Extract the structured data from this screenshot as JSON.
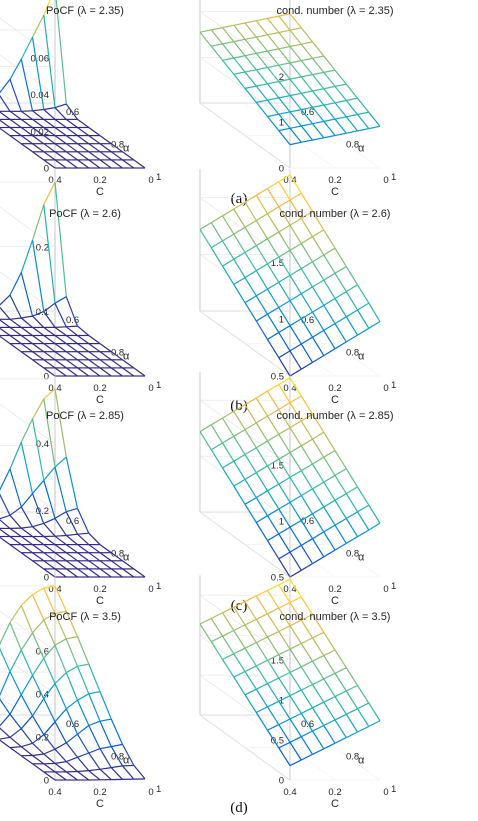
{
  "figure": {
    "captions": [
      "(a)",
      "(b)",
      "(c)",
      "(d)"
    ]
  },
  "chart_data": [
    {
      "type": "surface",
      "panel": "a",
      "title": "PoCF (λ = 2.35)",
      "xlabel": "C",
      "ylabel": "α",
      "x_ticks": [
        "0",
        "0.2",
        "0.4"
      ],
      "y_ticks": [
        "1",
        "0.8",
        "0.6"
      ],
      "z_ticks": [
        "0",
        "0.02",
        "0.04",
        "0.06"
      ],
      "xlim": [
        0,
        0.4
      ],
      "ylim": [
        0.6,
        1
      ],
      "zlim": [
        0,
        0.06
      ],
      "colormap": "parula",
      "mesh_lines": "wireframe",
      "x_values": [
        0,
        0.05,
        0.1,
        0.15,
        0.2,
        0.25,
        0.3,
        0.35,
        0.4
      ],
      "y_values": [
        0.6,
        0.65,
        0.7,
        0.75,
        0.8,
        0.85,
        0.9,
        0.95,
        1
      ],
      "z": [
        [
          0.063,
          0.048,
          0.036,
          0.024,
          0.013,
          0.005,
          0.0015,
          0.0003,
          0
        ],
        [
          0.004,
          0.002,
          0.001,
          0.0003,
          0,
          0,
          0,
          0,
          0
        ],
        [
          0,
          0,
          0,
          0,
          0,
          0,
          0,
          0,
          0
        ],
        [
          0,
          0,
          0,
          0,
          0,
          0,
          0,
          0,
          0
        ],
        [
          0,
          0,
          0,
          0,
          0,
          0,
          0,
          0,
          0
        ],
        [
          0,
          0,
          0,
          0,
          0,
          0,
          0,
          0,
          0
        ],
        [
          0,
          0,
          0,
          0,
          0,
          0,
          0,
          0,
          0
        ],
        [
          0,
          0,
          0,
          0,
          0,
          0,
          0,
          0,
          0
        ],
        [
          0,
          0,
          0,
          0,
          0,
          0,
          0,
          0,
          0
        ]
      ]
    },
    {
      "type": "surface",
      "panel": "a",
      "title": "cond. number (λ = 2.35)",
      "xlabel": "C",
      "ylabel": "α",
      "x_ticks": [
        "0",
        "0.2",
        "0.4"
      ],
      "y_ticks": [
        "1",
        "0.8",
        "0.6"
      ],
      "z_ticks": [
        "0",
        "1",
        "2"
      ],
      "xlim": [
        0,
        0.4
      ],
      "ylim": [
        0.6,
        1
      ],
      "zlim": [
        0,
        2.4
      ],
      "colormap": "parula",
      "mesh_lines": "wireframe",
      "x_values": [
        0,
        0.05,
        0.1,
        0.15,
        0.2,
        0.25,
        0.3,
        0.35,
        0.4
      ],
      "y_values": [
        0.6,
        0.65,
        0.7,
        0.75,
        0.8,
        0.85,
        0.9,
        0.95,
        1
      ],
      "z": [
        [
          1.95,
          1.9,
          1.85,
          1.8,
          1.75,
          1.7,
          1.65,
          1.6,
          1.55
        ],
        [
          1.82,
          1.77,
          1.72,
          1.67,
          1.62,
          1.57,
          1.52,
          1.47,
          1.42
        ],
        [
          1.69,
          1.64,
          1.59,
          1.54,
          1.49,
          1.44,
          1.39,
          1.34,
          1.29
        ],
        [
          1.56,
          1.51,
          1.46,
          1.41,
          1.36,
          1.31,
          1.26,
          1.21,
          1.16
        ],
        [
          1.43,
          1.38,
          1.33,
          1.28,
          1.23,
          1.18,
          1.13,
          1.08,
          1.03
        ],
        [
          1.3,
          1.25,
          1.2,
          1.15,
          1.1,
          1.05,
          1,
          0.95,
          0.9
        ],
        [
          1.17,
          1.12,
          1.07,
          1.02,
          0.97,
          0.92,
          0.87,
          0.82,
          0.77
        ],
        [
          1.04,
          0.99,
          0.94,
          0.89,
          0.84,
          0.79,
          0.74,
          0.69,
          0.64
        ],
        [
          0.91,
          0.86,
          0.81,
          0.76,
          0.71,
          0.66,
          0.61,
          0.56,
          0.51
        ]
      ]
    },
    {
      "type": "surface",
      "panel": "b",
      "title": "PoCF (λ = 2.6)",
      "xlabel": "C",
      "ylabel": "α",
      "x_ticks": [
        "0",
        "0.2",
        "0.4"
      ],
      "y_ticks": [
        "1",
        "0.8",
        "0.6"
      ],
      "z_ticks": [
        "0",
        "0.1",
        "0.2"
      ],
      "xlim": [
        0,
        0.4
      ],
      "ylim": [
        0.6,
        1
      ],
      "zlim": [
        0,
        0.22
      ],
      "colormap": "parula",
      "mesh_lines": "wireframe",
      "x_values": [
        0,
        0.05,
        0.1,
        0.15,
        0.2,
        0.25,
        0.3,
        0.35,
        0.4
      ],
      "y_values": [
        0.6,
        0.65,
        0.7,
        0.75,
        0.8,
        0.85,
        0.9,
        0.95,
        1
      ],
      "z": [
        [
          0.2,
          0.165,
          0.11,
          0.06,
          0.025,
          0.008,
          0.002,
          0,
          0
        ],
        [
          0.035,
          0.025,
          0.012,
          0.005,
          0.002,
          0,
          0,
          0,
          0
        ],
        [
          0.002,
          0.001,
          0,
          0,
          0,
          0,
          0,
          0,
          0
        ],
        [
          0,
          0,
          0,
          0,
          0,
          0,
          0,
          0,
          0
        ],
        [
          0,
          0,
          0,
          0,
          0,
          0,
          0,
          0,
          0
        ],
        [
          0,
          0,
          0,
          0,
          0,
          0,
          0,
          0,
          0
        ],
        [
          0,
          0,
          0,
          0,
          0,
          0,
          0,
          0,
          0
        ],
        [
          0,
          0,
          0,
          0,
          0,
          0,
          0,
          0,
          0
        ],
        [
          0,
          0,
          0,
          0,
          0,
          0,
          0,
          0,
          0
        ]
      ]
    },
    {
      "type": "surface",
      "panel": "b",
      "title": "cond. number (λ = 2.6)",
      "xlabel": "C",
      "ylabel": "α",
      "x_ticks": [
        "0",
        "0.2",
        "0.4"
      ],
      "y_ticks": [
        "1",
        "0.8",
        "0.6"
      ],
      "z_ticks": [
        "0.5",
        "1",
        "1.5"
      ],
      "xlim": [
        0,
        0.4
      ],
      "ylim": [
        0.6,
        1
      ],
      "zlim": [
        0.5,
        1.75
      ],
      "colormap": "parula",
      "mesh_lines": "wireframe",
      "x_values": [
        0,
        0.05,
        0.1,
        0.15,
        0.2,
        0.25,
        0.3,
        0.35,
        0.4
      ],
      "y_values": [
        0.6,
        0.65,
        0.7,
        0.75,
        0.8,
        0.85,
        0.9,
        0.95,
        1
      ],
      "z": [
        [
          1.7,
          1.64,
          1.58,
          1.52,
          1.46,
          1.4,
          1.34,
          1.28,
          1.22
        ],
        [
          1.61,
          1.55,
          1.49,
          1.43,
          1.37,
          1.31,
          1.25,
          1.19,
          1.13
        ],
        [
          1.52,
          1.46,
          1.4,
          1.34,
          1.28,
          1.22,
          1.16,
          1.1,
          1.04
        ],
        [
          1.43,
          1.37,
          1.31,
          1.25,
          1.19,
          1.13,
          1.07,
          1.01,
          0.95
        ],
        [
          1.34,
          1.28,
          1.22,
          1.16,
          1.1,
          1.04,
          0.98,
          0.92,
          0.86
        ],
        [
          1.25,
          1.19,
          1.13,
          1.07,
          1.01,
          0.95,
          0.89,
          0.83,
          0.77
        ],
        [
          1.16,
          1.1,
          1.04,
          0.98,
          0.92,
          0.86,
          0.8,
          0.74,
          0.68
        ],
        [
          1.07,
          1.01,
          0.95,
          0.89,
          0.83,
          0.77,
          0.71,
          0.65,
          0.59
        ],
        [
          0.98,
          0.92,
          0.86,
          0.8,
          0.74,
          0.68,
          0.62,
          0.56,
          0.5
        ]
      ]
    },
    {
      "type": "surface",
      "panel": "c",
      "title": "PoCF (λ = 2.85)",
      "xlabel": "C",
      "ylabel": "α",
      "x_ticks": [
        "0",
        "0.2",
        "0.4"
      ],
      "y_ticks": [
        "1",
        "0.8",
        "0.6"
      ],
      "z_ticks": [
        "0",
        "0.2",
        "0.4"
      ],
      "xlim": [
        0,
        0.4
      ],
      "ylim": [
        0.6,
        1
      ],
      "zlim": [
        0,
        0.42
      ],
      "colormap": "parula",
      "mesh_lines": "wireframe",
      "x_values": [
        0,
        0.05,
        0.1,
        0.15,
        0.2,
        0.25,
        0.3,
        0.35,
        0.4
      ],
      "y_values": [
        0.6,
        0.65,
        0.7,
        0.75,
        0.8,
        0.85,
        0.9,
        0.95,
        1
      ],
      "z": [
        [
          0.37,
          0.34,
          0.28,
          0.21,
          0.13,
          0.06,
          0.02,
          0.004,
          0
        ],
        [
          0.19,
          0.16,
          0.12,
          0.08,
          0.04,
          0.015,
          0.004,
          0,
          0
        ],
        [
          0.06,
          0.05,
          0.03,
          0.015,
          0.005,
          0.001,
          0,
          0,
          0
        ],
        [
          0.01,
          0.007,
          0.003,
          0.001,
          0,
          0,
          0,
          0,
          0
        ],
        [
          0,
          0,
          0,
          0,
          0,
          0,
          0,
          0,
          0
        ],
        [
          0,
          0,
          0,
          0,
          0,
          0,
          0,
          0,
          0
        ],
        [
          0,
          0,
          0,
          0,
          0,
          0,
          0,
          0,
          0
        ],
        [
          0,
          0,
          0,
          0,
          0,
          0,
          0,
          0,
          0
        ],
        [
          0,
          0,
          0,
          0,
          0,
          0,
          0,
          0,
          0
        ]
      ]
    },
    {
      "type": "surface",
      "panel": "c",
      "title": "cond. number (λ = 2.85)",
      "xlabel": "C",
      "ylabel": "α",
      "x_ticks": [
        "0",
        "0.2",
        "0.4"
      ],
      "y_ticks": [
        "1",
        "0.8",
        "0.6"
      ],
      "z_ticks": [
        "0.5",
        "1",
        "1.5"
      ],
      "xlim": [
        0,
        0.4
      ],
      "ylim": [
        0.6,
        1
      ],
      "zlim": [
        0.5,
        1.75
      ],
      "colormap": "parula",
      "mesh_lines": "wireframe",
      "x_values": [
        0,
        0.05,
        0.1,
        0.15,
        0.2,
        0.25,
        0.3,
        0.35,
        0.4
      ],
      "y_values": [
        0.6,
        0.65,
        0.7,
        0.75,
        0.8,
        0.85,
        0.9,
        0.95,
        1
      ],
      "z": [
        [
          1.7,
          1.64,
          1.58,
          1.52,
          1.46,
          1.4,
          1.34,
          1.28,
          1.22
        ],
        [
          1.61,
          1.55,
          1.49,
          1.43,
          1.37,
          1.31,
          1.25,
          1.19,
          1.13
        ],
        [
          1.52,
          1.46,
          1.4,
          1.34,
          1.28,
          1.22,
          1.16,
          1.1,
          1.04
        ],
        [
          1.43,
          1.37,
          1.31,
          1.25,
          1.19,
          1.13,
          1.07,
          1.01,
          0.95
        ],
        [
          1.34,
          1.28,
          1.22,
          1.16,
          1.1,
          1.04,
          0.98,
          0.92,
          0.86
        ],
        [
          1.25,
          1.19,
          1.13,
          1.07,
          1.01,
          0.95,
          0.89,
          0.83,
          0.77
        ],
        [
          1.16,
          1.1,
          1.04,
          0.98,
          0.92,
          0.86,
          0.8,
          0.74,
          0.68
        ],
        [
          1.07,
          1.01,
          0.95,
          0.89,
          0.83,
          0.77,
          0.71,
          0.65,
          0.59
        ],
        [
          0.98,
          0.92,
          0.86,
          0.8,
          0.74,
          0.68,
          0.62,
          0.56,
          0.5
        ]
      ]
    },
    {
      "type": "surface",
      "panel": "d",
      "title": "PoCF (λ = 3.5)",
      "xlabel": "C",
      "ylabel": "α",
      "x_ticks": [
        "0",
        "0.2",
        "0.4"
      ],
      "y_ticks": [
        "1",
        "0.8",
        "0.6"
      ],
      "z_ticks": [
        "0",
        "0.2",
        "0.4",
        "0.6"
      ],
      "xlim": [
        0,
        0.4
      ],
      "ylim": [
        0.6,
        1
      ],
      "zlim": [
        0,
        0.65
      ],
      "colormap": "parula",
      "mesh_lines": "wireframe",
      "x_values": [
        0,
        0.05,
        0.1,
        0.15,
        0.2,
        0.25,
        0.3,
        0.35,
        0.4
      ],
      "y_values": [
        0.6,
        0.65,
        0.7,
        0.75,
        0.8,
        0.85,
        0.9,
        0.95,
        1
      ],
      "z": [
        [
          0.6,
          0.59,
          0.56,
          0.51,
          0.43,
          0.32,
          0.18,
          0.06,
          0.01
        ],
        [
          0.52,
          0.51,
          0.48,
          0.42,
          0.34,
          0.24,
          0.12,
          0.04,
          0.005
        ],
        [
          0.44,
          0.43,
          0.4,
          0.34,
          0.26,
          0.17,
          0.08,
          0.02,
          0.003
        ],
        [
          0.35,
          0.34,
          0.31,
          0.26,
          0.19,
          0.11,
          0.05,
          0.01,
          0.001
        ],
        [
          0.26,
          0.25,
          0.22,
          0.18,
          0.12,
          0.06,
          0.02,
          0.004,
          0
        ],
        [
          0.17,
          0.16,
          0.14,
          0.1,
          0.06,
          0.03,
          0.008,
          0.001,
          0
        ],
        [
          0.09,
          0.08,
          0.07,
          0.05,
          0.03,
          0.01,
          0.002,
          0,
          0
        ],
        [
          0.03,
          0.028,
          0.02,
          0.012,
          0.006,
          0.002,
          0,
          0,
          0
        ],
        [
          0.005,
          0.004,
          0.003,
          0.002,
          0.001,
          0,
          0,
          0,
          0
        ]
      ]
    },
    {
      "type": "surface",
      "panel": "d",
      "title": "cond. number (λ = 3.5)",
      "xlabel": "C",
      "ylabel": "α",
      "x_ticks": [
        "0",
        "0.2",
        "0.4"
      ],
      "y_ticks": [
        "1",
        "0.8",
        "0.6"
      ],
      "z_ticks": [
        "0",
        "0.5",
        "1",
        "1.5"
      ],
      "xlim": [
        0,
        0.4
      ],
      "ylim": [
        0.6,
        1
      ],
      "zlim": [
        0,
        1.75
      ],
      "colormap": "parula",
      "mesh_lines": "wireframe",
      "x_values": [
        0,
        0.05,
        0.1,
        0.15,
        0.2,
        0.25,
        0.3,
        0.35,
        0.4
      ],
      "y_values": [
        0.6,
        0.65,
        0.7,
        0.75,
        0.8,
        0.85,
        0.9,
        0.95,
        1
      ],
      "z": [
        [
          1.7,
          1.63,
          1.56,
          1.49,
          1.42,
          1.35,
          1.28,
          1.21,
          1.14
        ],
        [
          1.58,
          1.51,
          1.44,
          1.37,
          1.3,
          1.23,
          1.16,
          1.09,
          1.02
        ],
        [
          1.46,
          1.39,
          1.32,
          1.25,
          1.18,
          1.11,
          1.04,
          0.97,
          0.9
        ],
        [
          1.34,
          1.27,
          1.2,
          1.13,
          1.06,
          0.99,
          0.92,
          0.85,
          0.78
        ],
        [
          1.22,
          1.15,
          1.08,
          1.01,
          0.94,
          0.87,
          0.8,
          0.73,
          0.66
        ],
        [
          1.1,
          1.03,
          0.96,
          0.89,
          0.82,
          0.75,
          0.68,
          0.61,
          0.54
        ],
        [
          0.98,
          0.91,
          0.84,
          0.77,
          0.7,
          0.63,
          0.56,
          0.49,
          0.42
        ],
        [
          0.86,
          0.79,
          0.72,
          0.65,
          0.58,
          0.51,
          0.44,
          0.37,
          0.3
        ],
        [
          0.74,
          0.67,
          0.6,
          0.53,
          0.46,
          0.39,
          0.32,
          0.25,
          0.18
        ]
      ]
    }
  ]
}
